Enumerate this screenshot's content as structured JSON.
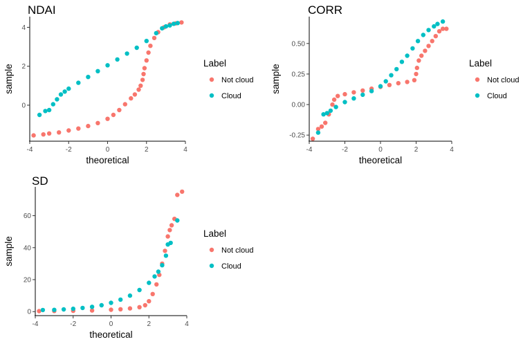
{
  "legend_title": "Label",
  "colors": {
    "not_cloud": "#F8766D",
    "cloud": "#00BFC4"
  },
  "chart_data": [
    {
      "type": "scatter",
      "title": "NDAI",
      "xlabel": "theoretical",
      "ylabel": "sample",
      "xlim": [
        -4,
        4
      ],
      "ylim": [
        -1.85,
        4.55
      ],
      "xticks": [
        -4,
        -2,
        0,
        2,
        4
      ],
      "yticks": [
        0,
        2,
        4
      ],
      "ytick_labels": [
        "0",
        "2",
        "4"
      ],
      "grid": false,
      "legend": {
        "title": "Label",
        "position": "right"
      },
      "series": [
        {
          "name": "Not cloud",
          "color": "#F8766D",
          "points": [
            [
              -3.8,
              -1.55
            ],
            [
              -3.3,
              -1.5
            ],
            [
              -3.0,
              -1.45
            ],
            [
              -2.5,
              -1.4
            ],
            [
              -2.0,
              -1.3
            ],
            [
              -1.5,
              -1.2
            ],
            [
              -1.0,
              -1.07
            ],
            [
              -0.5,
              -0.92
            ],
            [
              0.0,
              -0.7
            ],
            [
              0.3,
              -0.5
            ],
            [
              0.6,
              -0.25
            ],
            [
              0.9,
              0.05
            ],
            [
              1.2,
              0.35
            ],
            [
              1.4,
              0.55
            ],
            [
              1.6,
              0.8
            ],
            [
              1.7,
              1.0
            ],
            [
              1.8,
              1.3
            ],
            [
              1.85,
              1.6
            ],
            [
              1.9,
              1.9
            ],
            [
              2.0,
              2.3
            ],
            [
              2.1,
              2.7
            ],
            [
              2.2,
              3.05
            ],
            [
              2.4,
              3.45
            ],
            [
              2.6,
              3.75
            ],
            [
              2.9,
              4.0
            ],
            [
              3.2,
              4.15
            ],
            [
              3.5,
              4.2
            ],
            [
              3.8,
              4.25
            ]
          ]
        },
        {
          "name": "Cloud",
          "color": "#00BFC4",
          "points": [
            [
              -3.5,
              -0.5
            ],
            [
              -3.2,
              -0.3
            ],
            [
              -3.0,
              -0.25
            ],
            [
              -2.8,
              0.05
            ],
            [
              -2.6,
              0.3
            ],
            [
              -2.4,
              0.55
            ],
            [
              -2.2,
              0.7
            ],
            [
              -2.0,
              0.85
            ],
            [
              -1.5,
              1.15
            ],
            [
              -1.0,
              1.45
            ],
            [
              -0.5,
              1.75
            ],
            [
              0.0,
              2.05
            ],
            [
              0.5,
              2.35
            ],
            [
              1.0,
              2.65
            ],
            [
              1.5,
              2.95
            ],
            [
              2.0,
              3.3
            ],
            [
              2.5,
              3.7
            ],
            [
              2.8,
              3.95
            ],
            [
              3.0,
              4.05
            ],
            [
              3.2,
              4.1
            ],
            [
              3.4,
              4.18
            ],
            [
              3.6,
              4.22
            ]
          ]
        }
      ]
    },
    {
      "type": "scatter",
      "title": "CORR",
      "xlabel": "theoretical",
      "ylabel": "sample",
      "xlim": [
        -4,
        4
      ],
      "ylim": [
        -0.3,
        0.72
      ],
      "xticks": [
        -4,
        -2,
        0,
        2,
        4
      ],
      "yticks": [
        -0.25,
        0,
        0.25,
        0.5
      ],
      "ytick_labels": [
        "-0.25",
        "0.00",
        "0.25",
        "0.50"
      ],
      "grid": false,
      "legend": {
        "title": "Label",
        "position": "right"
      },
      "series": [
        {
          "name": "Not cloud",
          "color": "#F8766D",
          "points": [
            [
              -3.8,
              -0.28
            ],
            [
              -3.5,
              -0.2
            ],
            [
              -3.3,
              -0.18
            ],
            [
              -3.1,
              -0.15
            ],
            [
              -2.9,
              -0.08
            ],
            [
              -2.7,
              0.0
            ],
            [
              -2.6,
              0.04
            ],
            [
              -2.4,
              0.07
            ],
            [
              -2.0,
              0.085
            ],
            [
              -1.5,
              0.1
            ],
            [
              -1.0,
              0.115
            ],
            [
              -0.5,
              0.13
            ],
            [
              0.0,
              0.145
            ],
            [
              0.5,
              0.16
            ],
            [
              1.0,
              0.175
            ],
            [
              1.5,
              0.185
            ],
            [
              1.9,
              0.2
            ],
            [
              2.0,
              0.25
            ],
            [
              2.05,
              0.3
            ],
            [
              2.15,
              0.36
            ],
            [
              2.3,
              0.4
            ],
            [
              2.5,
              0.44
            ],
            [
              2.7,
              0.48
            ],
            [
              2.9,
              0.52
            ],
            [
              3.1,
              0.56
            ],
            [
              3.3,
              0.6
            ],
            [
              3.5,
              0.62
            ],
            [
              3.7,
              0.62
            ]
          ]
        },
        {
          "name": "Cloud",
          "color": "#00BFC4",
          "points": [
            [
              -3.5,
              -0.23
            ],
            [
              -3.2,
              -0.08
            ],
            [
              -3.0,
              -0.07
            ],
            [
              -2.8,
              -0.05
            ],
            [
              -2.5,
              -0.02
            ],
            [
              -2.0,
              0.02
            ],
            [
              -1.5,
              0.05
            ],
            [
              -1.0,
              0.08
            ],
            [
              -0.5,
              0.11
            ],
            [
              0.0,
              0.15
            ],
            [
              0.3,
              0.19
            ],
            [
              0.6,
              0.24
            ],
            [
              0.9,
              0.29
            ],
            [
              1.2,
              0.35
            ],
            [
              1.5,
              0.4
            ],
            [
              1.8,
              0.46
            ],
            [
              2.1,
              0.52
            ],
            [
              2.4,
              0.57
            ],
            [
              2.7,
              0.61
            ],
            [
              3.0,
              0.64
            ],
            [
              3.2,
              0.66
            ],
            [
              3.5,
              0.68
            ]
          ]
        }
      ]
    },
    {
      "type": "scatter",
      "title": "SD",
      "xlabel": "theoretical",
      "ylabel": "sample",
      "xlim": [
        -4,
        4
      ],
      "ylim": [
        -2.5,
        78
      ],
      "xticks": [
        -4,
        -2,
        0,
        2,
        4
      ],
      "yticks": [
        0,
        20,
        40,
        60
      ],
      "ytick_labels": [
        "0",
        "20",
        "40",
        "60"
      ],
      "grid": false,
      "legend": {
        "title": "Label",
        "position": "right"
      },
      "series": [
        {
          "name": "Not cloud",
          "color": "#F8766D",
          "points": [
            [
              -3.8,
              0.3
            ],
            [
              -3.0,
              0.4
            ],
            [
              -2.0,
              0.5
            ],
            [
              -1.0,
              0.7
            ],
            [
              0.0,
              1.2
            ],
            [
              0.5,
              1.5
            ],
            [
              1.0,
              2.0
            ],
            [
              1.5,
              2.8
            ],
            [
              1.8,
              4.0
            ],
            [
              2.0,
              6.5
            ],
            [
              2.2,
              11.0
            ],
            [
              2.4,
              17.0
            ],
            [
              2.55,
              23.0
            ],
            [
              2.7,
              30.0
            ],
            [
              2.85,
              38.0
            ],
            [
              3.0,
              47.0
            ],
            [
              3.1,
              51.0
            ],
            [
              3.2,
              54.0
            ],
            [
              3.35,
              58.0
            ],
            [
              3.5,
              73.0
            ],
            [
              3.75,
              75.0
            ]
          ]
        },
        {
          "name": "Cloud",
          "color": "#00BFC4",
          "points": [
            [
              -3.6,
              1.0
            ],
            [
              -3.0,
              1.1
            ],
            [
              -2.5,
              1.4
            ],
            [
              -2.0,
              1.8
            ],
            [
              -1.5,
              2.3
            ],
            [
              -1.0,
              3.0
            ],
            [
              -0.5,
              4.0
            ],
            [
              0.0,
              5.5
            ],
            [
              0.5,
              7.5
            ],
            [
              1.0,
              10.0
            ],
            [
              1.5,
              13.5
            ],
            [
              2.0,
              18.0
            ],
            [
              2.3,
              22.0
            ],
            [
              2.5,
              25.0
            ],
            [
              2.7,
              29.0
            ],
            [
              2.9,
              35.0
            ],
            [
              3.0,
              42.0
            ],
            [
              3.15,
              43.0
            ],
            [
              3.5,
              57.0
            ]
          ]
        }
      ]
    }
  ]
}
